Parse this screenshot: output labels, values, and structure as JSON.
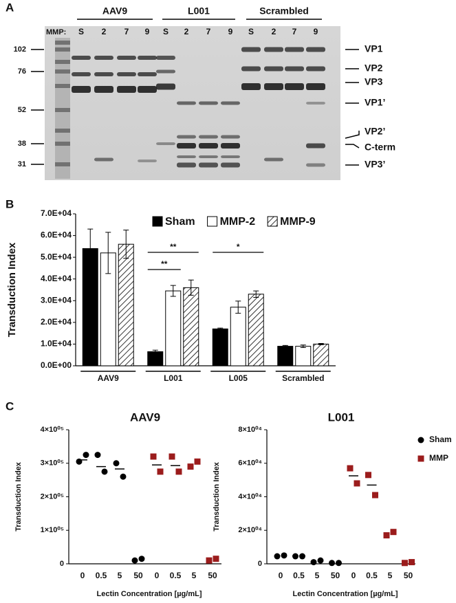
{
  "panels": [
    "A",
    "B",
    "C"
  ],
  "gel": {
    "lane_header": "MMP:",
    "groups": [
      "AAV9",
      "L001",
      "Scrambled"
    ],
    "lanes": [
      "S",
      "2",
      "7",
      "9"
    ],
    "markers": [
      102,
      76,
      52,
      38,
      31
    ],
    "bands": [
      "VP1",
      "VP2",
      "VP3",
      "VP1’",
      "VP2’",
      "C-term",
      "VP3’"
    ]
  },
  "chart_data": [
    {
      "type": "bar",
      "ylabel": "Transduction Index",
      "categories": [
        "AAV9",
        "L001",
        "L005",
        "Scrambled"
      ],
      "series": [
        {
          "name": "Sham",
          "color": "#000000",
          "values": [
            54000,
            6500,
            17000,
            9000
          ],
          "errors": [
            9000,
            700,
            400,
            400
          ]
        },
        {
          "name": "MMP-2",
          "color": "#ffffff",
          "values": [
            52000,
            34500,
            27000,
            9000
          ],
          "errors": [
            9500,
            2500,
            2800,
            600
          ]
        },
        {
          "name": "MMP-9",
          "color": "#ffffff",
          "hatch": true,
          "values": [
            56000,
            36000,
            33000,
            10000
          ],
          "errors": [
            6500,
            3500,
            1500,
            300
          ]
        }
      ],
      "annotations": [
        "**",
        "**",
        "*"
      ],
      "ylim": [
        0,
        70000
      ],
      "yticks": [
        {
          "value": 0,
          "label": "0.0E+00"
        },
        {
          "value": 10000,
          "label": "1.0E+04"
        },
        {
          "value": 20000,
          "label": "2.0E+04"
        },
        {
          "value": 30000,
          "label": "3.0E+04"
        },
        {
          "value": 40000,
          "label": "4.0E+04"
        },
        {
          "value": 50000,
          "label": "5.0E+04"
        },
        {
          "value": 60000,
          "label": "6.0E+04"
        },
        {
          "value": 70000,
          "label": "7.0E+04"
        }
      ],
      "legend": "top"
    },
    {
      "type": "dot",
      "title": "AAV9",
      "ylabel": "Transduction Index",
      "xlabel": "Lectin Concentration [µg/mL]",
      "categories": [
        "0",
        "0.5",
        "5",
        "50",
        "0",
        "0.5",
        "5",
        "50"
      ],
      "series": [
        {
          "color": "#000000",
          "marker": "circle",
          "values": [
            [
              305000,
              325000
            ],
            [
              325000,
              275000
            ],
            [
              300000,
              260000
            ],
            [
              10000,
              15000
            ],
            null,
            null,
            null,
            null
          ]
        },
        {
          "color": "#9b1c1c",
          "marker": "square",
          "values": [
            null,
            null,
            null,
            null,
            [
              320000,
              275000
            ],
            [
              320000,
              275000
            ],
            [
              290000,
              305000
            ],
            [
              10000,
              15000
            ]
          ]
        }
      ],
      "means": [
        310000,
        290000,
        283000,
        null,
        295000,
        293000,
        null,
        null
      ],
      "ylim": [
        0,
        400000
      ],
      "yticks": [
        0,
        {
          "value": 100000,
          "label": "1×10⁰⁵"
        },
        {
          "value": 200000,
          "label": "2×10⁰⁵"
        },
        {
          "value": 300000,
          "label": "3×10⁰⁵"
        },
        {
          "value": 400000,
          "label": "4×10⁰⁵"
        }
      ]
    },
    {
      "type": "dot",
      "title": "L001",
      "ylabel": "Transduction Index",
      "xlabel": "Lectin Concentration [µg/mL]",
      "categories": [
        "0",
        "0.5",
        "5",
        "50",
        "0",
        "0.5",
        "5",
        "50"
      ],
      "series": [
        {
          "name": "Sham",
          "color": "#000000",
          "marker": "circle",
          "values": [
            [
              4500,
              5000
            ],
            [
              4500,
              4500
            ],
            [
              1000,
              2000
            ],
            [
              500,
              500
            ],
            null,
            null,
            null,
            null
          ]
        },
        {
          "name": "MMP",
          "color": "#9b1c1c",
          "marker": "square",
          "values": [
            null,
            null,
            null,
            null,
            [
              57000,
              48000
            ],
            [
              53000,
              41000
            ],
            [
              17000,
              19000
            ],
            [
              500,
              1000
            ]
          ]
        }
      ],
      "means": [
        null,
        null,
        null,
        null,
        52500,
        47000,
        null,
        null
      ],
      "ylim": [
        0,
        80000
      ],
      "yticks": [
        0,
        {
          "value": 20000,
          "label": "2×10⁰⁴"
        },
        {
          "value": 40000,
          "label": "4×10⁰⁴"
        },
        {
          "value": 60000,
          "label": "6×10⁰⁴"
        },
        {
          "value": 80000,
          "label": "8×10⁰⁴"
        }
      ],
      "legend": "right"
    }
  ]
}
